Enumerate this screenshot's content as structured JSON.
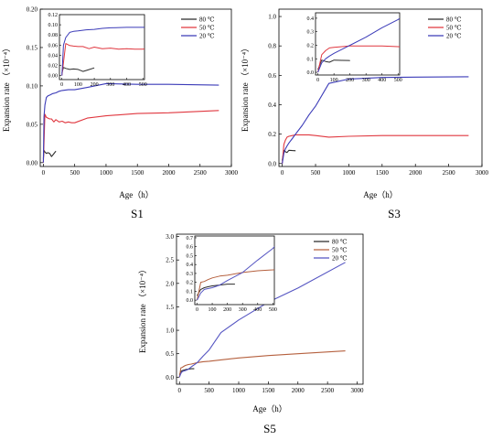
{
  "chart_data": [
    {
      "type": "line",
      "caption": "S1",
      "xlabel": "Age（h）",
      "ylabel": "Expansion rate （×10⁻⁴）",
      "xlim": [
        -50,
        3000
      ],
      "ylim": [
        -0.005,
        0.2
      ],
      "xticks": [
        "0",
        "500",
        "1000",
        "1500",
        "2000",
        "2500",
        "3000"
      ],
      "yticks": [
        "0.00",
        "0.05",
        "0.10",
        "0.15",
        "0.20"
      ],
      "series": [
        {
          "name": "80 ℃",
          "color": "#2b2b2b",
          "x": [
            0,
            10,
            24,
            48,
            72,
            100,
            130,
            160,
            200
          ],
          "y": [
            0.005,
            0.016,
            0.014,
            0.012,
            0.013,
            0.012,
            0.008,
            0.011,
            0.015
          ]
        },
        {
          "name": "50 ℃",
          "color": "#e0373f",
          "x": [
            0,
            24,
            48,
            72,
            100,
            130,
            168,
            200,
            250,
            300,
            350,
            400,
            450,
            500,
            700,
            1000,
            1500,
            2000,
            2800
          ],
          "y": [
            0,
            0.063,
            0.059,
            0.058,
            0.057,
            0.057,
            0.053,
            0.056,
            0.053,
            0.054,
            0.052,
            0.053,
            0.052,
            0.052,
            0.058,
            0.061,
            0.064,
            0.065,
            0.068
          ]
        },
        {
          "name": "20 ℃",
          "color": "#3b3bb8",
          "x": [
            0,
            10,
            24,
            48,
            72,
            100,
            150,
            200,
            250,
            300,
            400,
            500,
            700,
            1000,
            1500,
            2000,
            2800
          ],
          "y": [
            0,
            0.06,
            0.075,
            0.085,
            0.087,
            0.088,
            0.09,
            0.091,
            0.093,
            0.094,
            0.095,
            0.095,
            0.098,
            0.103,
            0.102,
            0.102,
            0.101
          ]
        }
      ],
      "inset": {
        "xlim": [
          -15,
          510
        ],
        "ylim": [
          -0.008,
          0.12
        ],
        "xticks": [
          "0",
          "100",
          "200",
          "300",
          "400",
          "500"
        ],
        "yticks": [
          "0.00",
          "0.02",
          "0.04",
          "0.06",
          "0.08",
          "0.10",
          "0.12"
        ]
      }
    },
    {
      "type": "line",
      "caption": "S3",
      "xlabel": "Age（h）",
      "ylabel": "Expansion rate （×10⁻⁴）",
      "xlim": [
        -50,
        3000
      ],
      "ylim": [
        -0.02,
        1.05
      ],
      "xticks": [
        "0",
        "500",
        "1000",
        "1500",
        "2000",
        "2500",
        "3000"
      ],
      "yticks": [
        "0.0",
        "0.2",
        "0.4",
        "0.6",
        "0.8",
        "1.0"
      ],
      "series": [
        {
          "name": "80 ℃",
          "color": "#2b2b2b",
          "x": [
            0,
            24,
            48,
            72,
            100,
            150,
            200
          ],
          "y": [
            0.02,
            0.09,
            0.08,
            0.075,
            0.09,
            0.088,
            0.087
          ]
        },
        {
          "name": "50 ℃",
          "color": "#e0373f",
          "x": [
            0,
            24,
            48,
            72,
            100,
            150,
            200,
            250,
            300,
            400,
            500,
            700,
            1000,
            1500,
            2000,
            2800
          ],
          "y": [
            0,
            0.13,
            0.16,
            0.18,
            0.185,
            0.19,
            0.195,
            0.195,
            0.195,
            0.195,
            0.19,
            0.18,
            0.185,
            0.19,
            0.19,
            0.19
          ]
        },
        {
          "name": "20 ℃",
          "color": "#3b3bb8",
          "x": [
            0,
            24,
            48,
            72,
            100,
            150,
            200,
            300,
            400,
            500,
            700,
            1000,
            1500,
            2000,
            2800
          ],
          "y": [
            0,
            0.07,
            0.1,
            0.12,
            0.14,
            0.17,
            0.2,
            0.26,
            0.33,
            0.39,
            0.545,
            0.575,
            0.585,
            0.588,
            0.59
          ]
        }
      ],
      "inset": {
        "xlim": [
          -15,
          510
        ],
        "ylim": [
          -0.02,
          0.44
        ],
        "xticks": [
          "0",
          "100",
          "200",
          "300",
          "400",
          "500"
        ],
        "yticks": [
          "0.0",
          "0.1",
          "0.2",
          "0.3",
          "0.4"
        ]
      }
    },
    {
      "type": "line",
      "caption": "S5",
      "xlabel": "Age（h）",
      "ylabel": "Expansion rate （×10⁻⁴）",
      "xlim": [
        -50,
        3100
      ],
      "ylim": [
        -0.15,
        3.05
      ],
      "xticks": [
        "0",
        "500",
        "1000",
        "1500",
        "2000",
        "2500",
        "3000"
      ],
      "yticks": [
        "0.0",
        "0.5",
        "1.0",
        "1.5",
        "2.0",
        "2.5",
        "3.0"
      ],
      "series": [
        {
          "name": "80 ℃",
          "color": "#2b2b2b",
          "x": [
            0,
            24,
            48,
            72,
            100,
            150,
            200,
            250
          ],
          "y": [
            0.05,
            0.12,
            0.14,
            0.15,
            0.16,
            0.17,
            0.18,
            0.18
          ]
        },
        {
          "name": "50 ℃",
          "color": "#b5603e",
          "x": [
            0,
            24,
            48,
            72,
            100,
            150,
            200,
            300,
            400,
            500,
            700,
            1000,
            1500,
            2000,
            2800
          ],
          "y": [
            0,
            0.2,
            0.21,
            0.23,
            0.25,
            0.27,
            0.28,
            0.31,
            0.33,
            0.34,
            0.37,
            0.41,
            0.46,
            0.5,
            0.56
          ]
        },
        {
          "name": "20 ℃",
          "color": "#5555c2",
          "x": [
            0,
            24,
            48,
            72,
            100,
            150,
            200,
            300,
            400,
            500,
            700,
            1000,
            1500,
            2000,
            2800
          ],
          "y": [
            0,
            0.08,
            0.12,
            0.13,
            0.14,
            0.17,
            0.22,
            0.31,
            0.45,
            0.58,
            0.95,
            1.22,
            1.6,
            1.9,
            2.45
          ]
        }
      ],
      "inset": {
        "xlim": [
          -15,
          510
        ],
        "ylim": [
          -0.05,
          0.72
        ],
        "xticks": [
          "0",
          "100",
          "200",
          "300",
          "400",
          "500"
        ],
        "yticks": [
          "0.0",
          "0.1",
          "0.2",
          "0.3",
          "0.4",
          "0.5",
          "0.6",
          "0.7"
        ]
      }
    }
  ]
}
